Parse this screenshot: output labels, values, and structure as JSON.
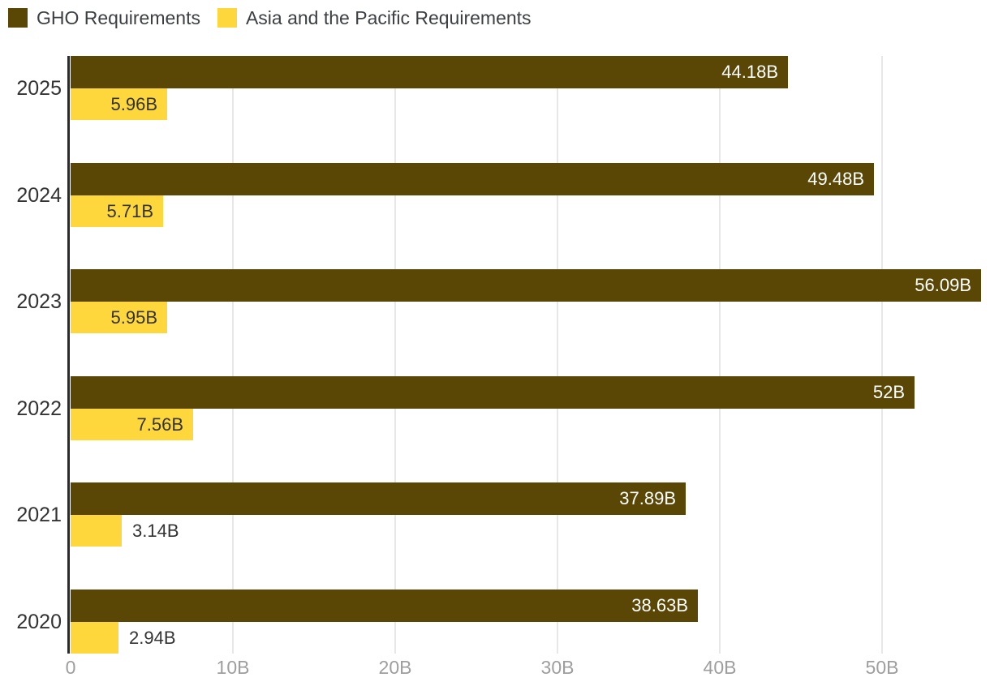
{
  "chart_data": {
    "type": "bar",
    "orientation": "horizontal",
    "title": "",
    "xlabel": "",
    "ylabel": "",
    "unit": "B",
    "grid": "vertical",
    "legend_position": "top-left",
    "categories": [
      "2025",
      "2024",
      "2023",
      "2022",
      "2021",
      "2020"
    ],
    "series": [
      {
        "name": "GHO Requirements",
        "color": "#5a4605",
        "label_color": "#ffffff",
        "values": [
          44.18,
          49.48,
          56.09,
          52,
          37.89,
          38.63
        ],
        "labels": [
          "44.18B",
          "49.48B",
          "56.09B",
          "52B",
          "37.89B",
          "38.63B"
        ]
      },
      {
        "name": "Asia and the Pacific Requirements",
        "color": "#fdd73c",
        "label_color": "#333333",
        "values": [
          5.96,
          5.71,
          5.95,
          7.56,
          3.14,
          2.94
        ],
        "labels": [
          "5.96B",
          "5.71B",
          "5.95B",
          "7.56B",
          "3.14B",
          "2.94B"
        ]
      }
    ],
    "x_ticks": [
      {
        "value": 0,
        "label": "0"
      },
      {
        "value": 10,
        "label": "10B"
      },
      {
        "value": 20,
        "label": "20B"
      },
      {
        "value": 30,
        "label": "30B"
      },
      {
        "value": 40,
        "label": "40B"
      },
      {
        "value": 50,
        "label": "50B"
      }
    ],
    "xlim": [
      0,
      56.65
    ]
  },
  "legend": {
    "item1_label": "GHO Requirements",
    "item2_label": "Asia and the Pacific Requirements"
  },
  "axis_colors": {
    "tick_label": "#9e9e9e",
    "gridline": "#e7e7e7",
    "axis_line": "#2b2b2b",
    "category_label": "#333333"
  }
}
